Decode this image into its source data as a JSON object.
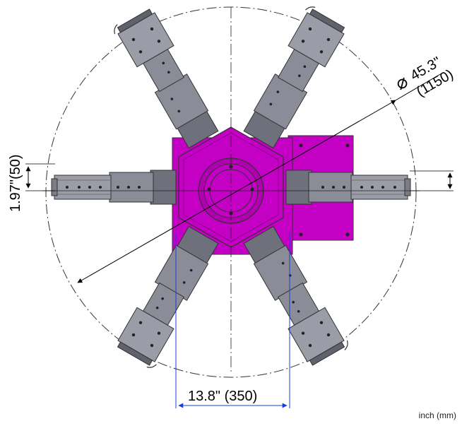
{
  "diameter": {
    "symbol": "⌀",
    "inch": "45.3\"",
    "mm": "(1150)"
  },
  "arm_width_dim": "1.97\"(50)",
  "hub_width_dim": "13.8\" (350)",
  "units_note": "inch (mm)",
  "colors": {
    "hub": "#c400c4",
    "hub_dark": "#8a008a",
    "arm": "#8a8d98",
    "arm_dark": "#5f626c",
    "dim_line_blue": "#1a3fd6"
  }
}
